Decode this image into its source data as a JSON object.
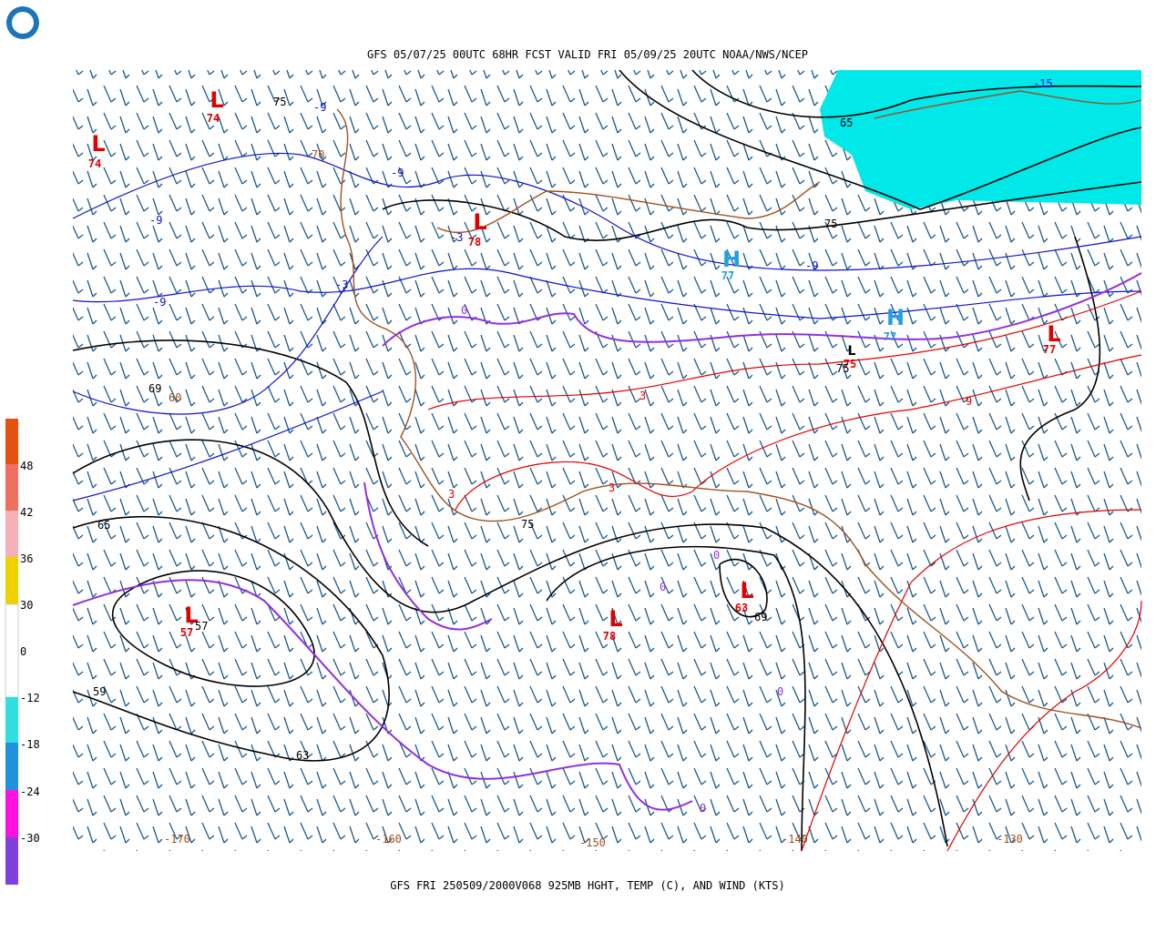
{
  "header": {
    "title": "GFS 05/07/25 00UTC 68HR FCST VALID FRI 05/09/25 20UTC NOAA/NWS/NCEP"
  },
  "footer": {
    "caption": "GFS FRI 250509/2000V068 925MB HGHT, TEMP (C), AND WIND (KTS)"
  },
  "colorbar": {
    "labels": [
      "48",
      "42",
      "36",
      "30",
      "0",
      "-12",
      "-18",
      "-24",
      "-30"
    ]
  },
  "longitudes": [
    "-170",
    "-160",
    "-150",
    "-140",
    "-130"
  ],
  "centers": [
    {
      "letter": "L",
      "value": "74"
    },
    {
      "letter": "L",
      "value": "74"
    },
    {
      "letter": "L",
      "value": "78"
    },
    {
      "letter": "H",
      "value": "77"
    },
    {
      "letter": "H",
      "value": "77"
    },
    {
      "letter": "L",
      "value": "77"
    },
    {
      "letter": "L",
      "value": "75"
    },
    {
      "letter": "L",
      "value": "63"
    },
    {
      "letter": "L",
      "value": "78"
    },
    {
      "letter": "L",
      "value": "57"
    }
  ],
  "height_labels": [
    "75",
    "65",
    "75",
    "69",
    "75",
    "65",
    "57",
    "69",
    "63",
    "59",
    "75"
  ],
  "temp_labels": [
    "-9",
    "-9",
    "-9",
    "-3",
    "-3",
    "-9",
    "-9",
    "-15",
    "3",
    "3",
    "3",
    "9",
    "0",
    "0",
    "0",
    "0",
    "0",
    "70",
    "60"
  ]
}
